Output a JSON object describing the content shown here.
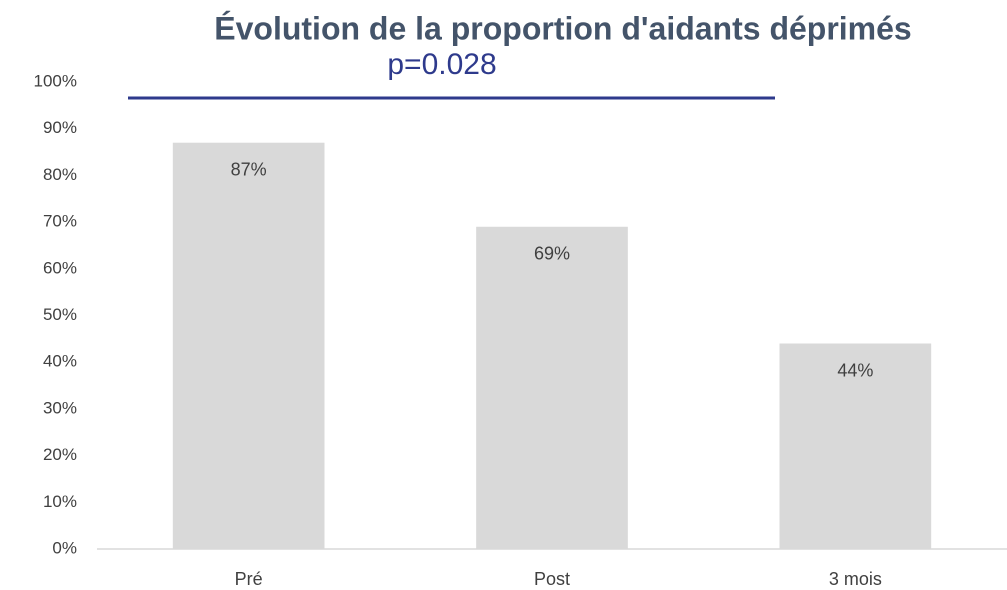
{
  "chart_data": {
    "type": "bar",
    "title": "Évolution de la proportion d'aidants déprimés",
    "annotation": "p=0.028",
    "categories": [
      "Pré",
      "Post",
      "3 mois"
    ],
    "values": [
      87,
      69,
      44
    ],
    "value_labels": [
      "87%",
      "69%",
      "44%"
    ],
    "color": "#d9d9d9",
    "ylim": [
      0,
      100
    ],
    "yticks": [
      {
        "value": 0,
        "label": "0%"
      },
      {
        "value": 10,
        "label": "10%"
      },
      {
        "value": 20,
        "label": "20%"
      },
      {
        "value": 30,
        "label": "30%"
      },
      {
        "value": 40,
        "label": "40%"
      },
      {
        "value": 50,
        "label": "50%"
      },
      {
        "value": 60,
        "label": "60%"
      },
      {
        "value": 70,
        "label": "70%"
      },
      {
        "value": 80,
        "label": "80%"
      },
      {
        "value": 90,
        "label": "90%"
      },
      {
        "value": 100,
        "label": "100%"
      }
    ],
    "grid": false
  }
}
